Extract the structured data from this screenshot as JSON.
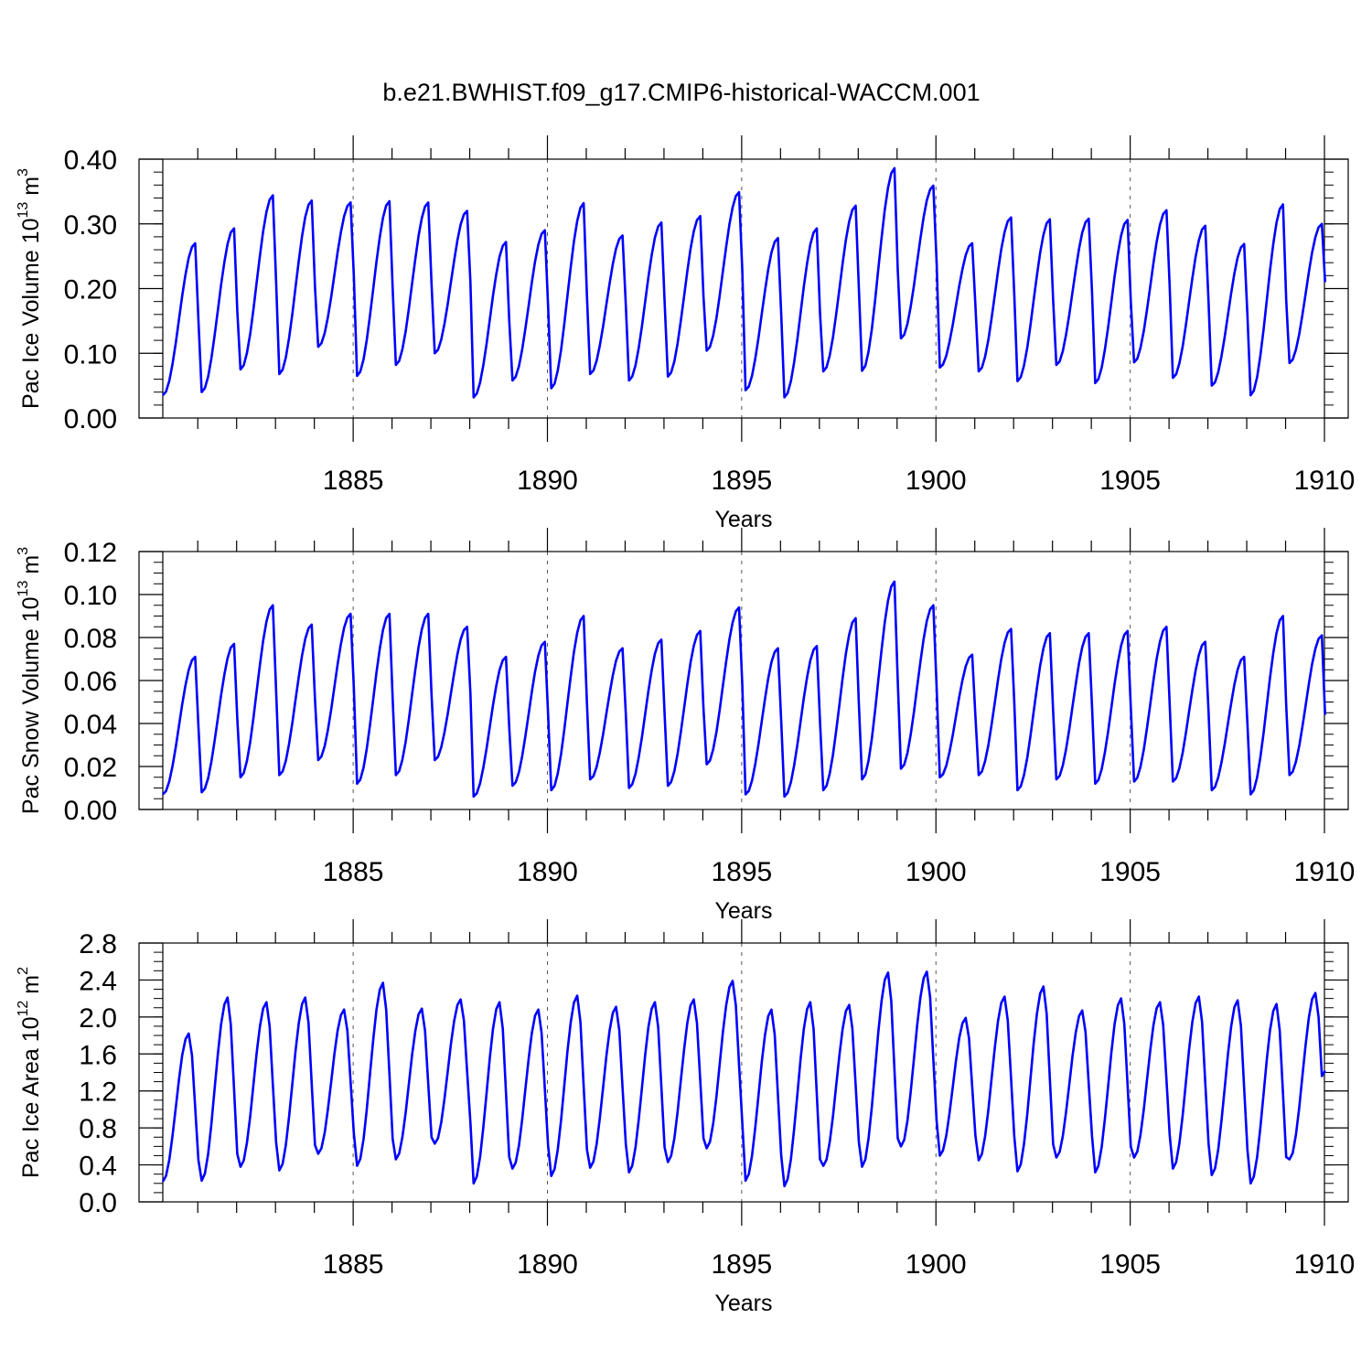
{
  "chart_data": [
    {
      "type": "line",
      "title": "b.e21.BWHIST.f09_g17.CMIP6-historical-WACCM.001",
      "xlabel": "Years",
      "ylabel": {
        "base": "Pac Ice Volume 10",
        "exp": "13",
        "unit": " m",
        "unit_exp": "3"
      },
      "xlim": [
        1880.1,
        1910.0
      ],
      "ylim": [
        0.0,
        0.4
      ],
      "yticks": [
        "0.00",
        "0.10",
        "0.20",
        "0.30",
        "0.40"
      ],
      "ytick_values": [
        0.0,
        0.1,
        0.2,
        0.3,
        0.4
      ],
      "ytick_minor_step": 0.02,
      "xticks": [
        "1885",
        "1890",
        "1895",
        "1900",
        "1905",
        "1910"
      ],
      "xtick_values": [
        1885,
        1890,
        1895,
        1900,
        1905,
        1910
      ],
      "vgrid_years": [
        1885,
        1890,
        1895,
        1900,
        1905
      ],
      "color": "#0000ff",
      "series": [
        {
          "name": "Pac Ice Volume",
          "start_year": 1880.1,
          "step": 0.083333,
          "yearly_min": [
            0.035,
            0.04,
            0.075,
            0.068,
            0.11,
            0.065,
            0.082,
            0.1,
            0.032,
            0.058,
            0.046,
            0.068,
            0.058,
            0.064,
            0.104,
            0.043,
            0.032,
            0.072,
            0.073,
            0.123,
            0.078,
            0.072,
            0.057,
            0.082,
            0.054,
            0.086,
            0.062,
            0.05,
            0.035,
            0.085
          ],
          "yearly_max": [
            0.27,
            0.293,
            0.344,
            0.336,
            0.333,
            0.335,
            0.333,
            0.32,
            0.272,
            0.29,
            0.332,
            0.282,
            0.302,
            0.312,
            0.349,
            0.278,
            0.293,
            0.328,
            0.386,
            0.359,
            0.27,
            0.31,
            0.307,
            0.308,
            0.306,
            0.321,
            0.297,
            0.269,
            0.33,
            0.3
          ],
          "peak_month": 10,
          "end_value": 0.21
        }
      ]
    },
    {
      "type": "line",
      "title": "",
      "xlabel": "Years",
      "ylabel": {
        "base": "Pac Snow Volume 10",
        "exp": "13",
        "unit": " m",
        "unit_exp": "3"
      },
      "xlim": [
        1880.1,
        1910.0
      ],
      "ylim": [
        0.0,
        0.12
      ],
      "yticks": [
        "0.00",
        "0.02",
        "0.04",
        "0.06",
        "0.08",
        "0.10",
        "0.12"
      ],
      "ytick_values": [
        0.0,
        0.02,
        0.04,
        0.06,
        0.08,
        0.1,
        0.12
      ],
      "ytick_minor_step": 0.005,
      "xticks": [
        "1885",
        "1890",
        "1895",
        "1900",
        "1905",
        "1910"
      ],
      "xtick_values": [
        1885,
        1890,
        1895,
        1900,
        1905,
        1910
      ],
      "vgrid_years": [
        1885,
        1890,
        1895,
        1900,
        1905
      ],
      "color": "#0000ff",
      "series": [
        {
          "name": "Pac Snow Volume",
          "start_year": 1880.1,
          "step": 0.083333,
          "yearly_min": [
            0.007,
            0.008,
            0.015,
            0.016,
            0.023,
            0.012,
            0.016,
            0.023,
            0.006,
            0.011,
            0.009,
            0.014,
            0.01,
            0.011,
            0.021,
            0.007,
            0.006,
            0.009,
            0.014,
            0.019,
            0.015,
            0.016,
            0.009,
            0.014,
            0.012,
            0.013,
            0.013,
            0.009,
            0.007,
            0.016
          ],
          "yearly_max": [
            0.071,
            0.077,
            0.095,
            0.086,
            0.091,
            0.091,
            0.091,
            0.085,
            0.071,
            0.078,
            0.09,
            0.075,
            0.079,
            0.083,
            0.094,
            0.075,
            0.076,
            0.089,
            0.106,
            0.095,
            0.072,
            0.084,
            0.082,
            0.082,
            0.083,
            0.085,
            0.078,
            0.071,
            0.09,
            0.081
          ],
          "peak_month": 10,
          "end_value": 0.044
        }
      ]
    },
    {
      "type": "line",
      "title": "",
      "xlabel": "Years",
      "ylabel": {
        "base": "Pac Ice Area 10",
        "exp": "12",
        "unit": " m",
        "unit_exp": "2"
      },
      "xlim": [
        1880.1,
        1910.0
      ],
      "ylim": [
        0.0,
        2.8
      ],
      "yticks": [
        "0.0",
        "0.4",
        "0.8",
        "1.2",
        "1.6",
        "2.0",
        "2.4",
        "2.8"
      ],
      "ytick_values": [
        0.0,
        0.4,
        0.8,
        1.2,
        1.6,
        2.0,
        2.4,
        2.8
      ],
      "ytick_minor_step": 0.1,
      "xticks": [
        "1885",
        "1890",
        "1895",
        "1900",
        "1905",
        "1910"
      ],
      "xtick_values": [
        1885,
        1890,
        1895,
        1900,
        1905,
        1910
      ],
      "vgrid_years": [
        1885,
        1890,
        1895,
        1900,
        1905
      ],
      "color": "#0000ff",
      "series": [
        {
          "name": "Pac Ice Area",
          "start_year": 1880.1,
          "step": 0.083333,
          "yearly_min": [
            0.22,
            0.23,
            0.38,
            0.34,
            0.52,
            0.39,
            0.46,
            0.63,
            0.2,
            0.36,
            0.28,
            0.37,
            0.32,
            0.43,
            0.58,
            0.23,
            0.17,
            0.39,
            0.38,
            0.6,
            0.5,
            0.45,
            0.33,
            0.48,
            0.32,
            0.48,
            0.36,
            0.29,
            0.2,
            0.46
          ],
          "yearly_max": [
            1.82,
            2.21,
            2.16,
            2.21,
            2.08,
            2.37,
            2.09,
            2.19,
            2.16,
            2.08,
            2.23,
            2.11,
            2.16,
            2.19,
            2.39,
            2.08,
            2.16,
            2.13,
            2.48,
            2.49,
            1.99,
            2.22,
            2.33,
            2.07,
            2.2,
            2.16,
            2.22,
            2.18,
            2.14,
            2.26
          ],
          "peak_month": 8,
          "end_value": 1.42
        }
      ]
    }
  ]
}
